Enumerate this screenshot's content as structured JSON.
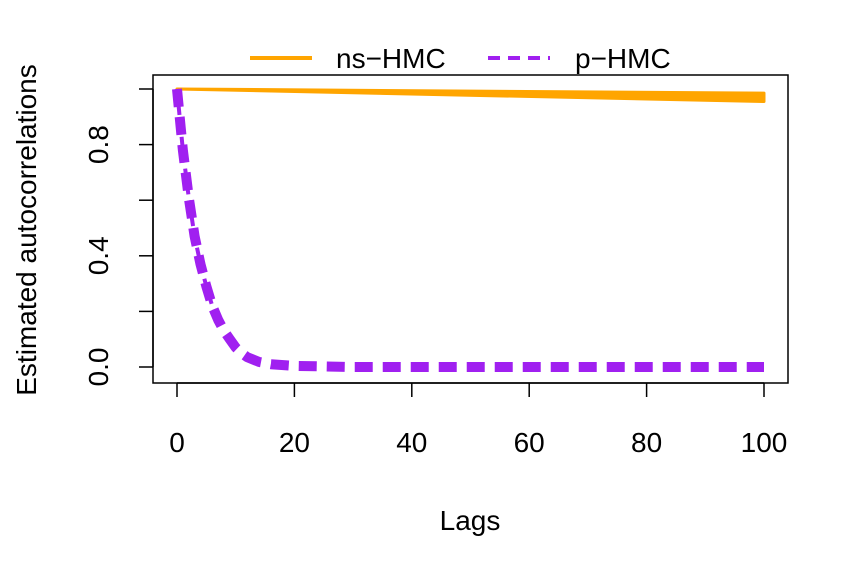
{
  "chart_data": {
    "type": "line",
    "title": "",
    "xlabel": "Lags",
    "ylabel": "Estimated autocorrelations",
    "xlim": [
      0,
      100
    ],
    "ylim": [
      0,
      1
    ],
    "x_ticks": [
      0,
      20,
      40,
      60,
      80,
      100
    ],
    "y_ticks": [
      0.0,
      0.2,
      0.4,
      0.6,
      0.8,
      1.0
    ],
    "y_tick_labels": [
      "0.0",
      "",
      "0.4",
      "",
      "0.8",
      ""
    ],
    "grid": false,
    "legend_position": "top",
    "series": [
      {
        "name": "ns−HMC",
        "color": "#FFA500",
        "line_style": "solid",
        "band_upper_start": 1.0,
        "band_upper_end": 0.985,
        "band_lower_start": 1.0,
        "band_lower_end": 0.955
      },
      {
        "name": "p−HMC",
        "color": "#A020F0",
        "line_style": "dashed",
        "x": [
          0,
          1,
          2,
          3,
          4,
          5,
          6,
          7,
          8,
          9,
          10,
          11,
          12,
          14,
          16,
          20,
          30,
          40,
          50,
          60,
          70,
          80,
          90,
          100
        ],
        "y": [
          1.0,
          0.78,
          0.61,
          0.47,
          0.37,
          0.29,
          0.22,
          0.17,
          0.13,
          0.1,
          0.07,
          0.05,
          0.035,
          0.018,
          0.01,
          0.004,
          0.0,
          0.0,
          0.0,
          0.0,
          0.0,
          0.0,
          0.0,
          0.0
        ]
      }
    ]
  }
}
